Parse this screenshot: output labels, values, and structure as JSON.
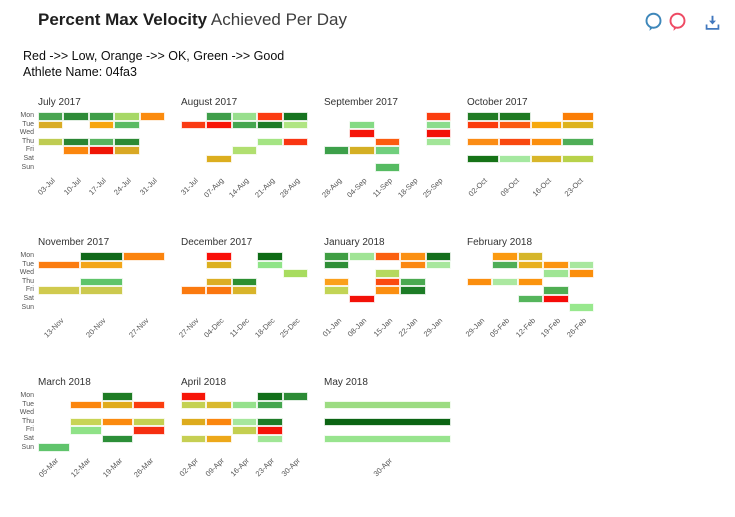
{
  "header": {
    "title_bold": "Percent Max Velocity",
    "title_rest": " Achieved Per Day",
    "toolbar": {
      "comment_blue_color": "#3e87ba",
      "comment_red_color": "#ee4a63",
      "download_color": "#4178be"
    }
  },
  "subtitle": {
    "legend_line": "Red ->> Low, Orange ->> OK, Green ->> Good",
    "athlete_line": "Athlete Name: 04fa3"
  },
  "chart_data": {
    "type": "heatmap",
    "title": "Percent Max Velocity Achieved Per Day",
    "subtitle": "Red ->> Low, Orange ->> OK, Green ->> Good",
    "athlete_name": "04fa3",
    "color_meaning": {
      "red": "Low",
      "orange": "OK",
      "green": "Good"
    },
    "legend_position": "none",
    "grid": false,
    "day_rows": [
      "Mon",
      "Tue",
      "Wed",
      "Thu",
      "Fri",
      "Sat",
      "Sun"
    ],
    "months_per_row": 4,
    "months": [
      {
        "title": "July 2017",
        "show_day_labels": true,
        "week_labels": [
          "03-Jul",
          "10-Jul",
          "17-Jul",
          "24-Jul",
          "31-Jul"
        ],
        "cells": [
          [
            "#4aa551",
            "#2e8b38",
            "#3f9e48",
            "#a7d866",
            "#fb8b0e"
          ],
          [
            "#d9ac25",
            null,
            "#f7a60e",
            "#5bbb63",
            null
          ],
          [
            null,
            null,
            null,
            null,
            null
          ],
          [
            "#bfcc52",
            "#2a8533",
            "#58b35e",
            "#2c8a34",
            null
          ],
          [
            null,
            "#fb860e",
            "#f01505",
            "#d9a824",
            null
          ],
          [
            null,
            null,
            null,
            null,
            null
          ],
          [
            null,
            null,
            null,
            null,
            null
          ]
        ]
      },
      {
        "title": "August 2017",
        "show_day_labels": false,
        "week_labels": [
          "31-Jul",
          "07-Aug",
          "14-Aug",
          "21-Aug",
          "28-Aug"
        ],
        "cells": [
          [
            null,
            "#3f9e4a",
            "#98df8d",
            "#fb3c12",
            "#177420"
          ],
          [
            "#fa3b14",
            "#f81508",
            "#45a64f",
            "#1e7c27",
            "#b0e583"
          ],
          [
            null,
            null,
            null,
            null,
            null
          ],
          [
            null,
            null,
            null,
            "#a4e483",
            "#f93512"
          ],
          [
            null,
            null,
            "#b1df70",
            null,
            null
          ],
          [
            null,
            "#dcae1f",
            null,
            null,
            null
          ],
          [
            null,
            null,
            null,
            null,
            null
          ]
        ]
      },
      {
        "title": "September 2017",
        "show_day_labels": false,
        "week_labels": [
          "28-Aug",
          "04-Sep",
          "11-Sep",
          "18-Sep",
          "25-Sep"
        ],
        "cells": [
          [
            null,
            null,
            null,
            null,
            "#fb3d0f"
          ],
          [
            null,
            "#84da84",
            null,
            null,
            "#8cdc8c"
          ],
          [
            null,
            "#f51408",
            null,
            null,
            "#f21008"
          ],
          [
            null,
            null,
            "#fb5c0f",
            null,
            "#a2e598"
          ],
          [
            "#3da04a",
            "#d4af24",
            "#70cf7d",
            null,
            null
          ],
          [
            null,
            null,
            null,
            null,
            null
          ],
          [
            null,
            null,
            "#56bb62",
            null,
            null
          ]
        ]
      },
      {
        "title": "October 2017",
        "show_day_labels": false,
        "week_labels": [
          "02-Oct",
          "09-Oct",
          "16-Oct",
          "23-Oct"
        ],
        "cells": [
          [
            "#217b24",
            "#1e7a22",
            null,
            "#fb7e06"
          ],
          [
            "#fb3b0d",
            "#fb5a11",
            "#f7a90d",
            "#ddb31d"
          ],
          [
            null,
            null,
            null,
            null
          ],
          [
            "#fb8c15",
            "#f9480f",
            "#fb8e0d",
            "#4fae57"
          ],
          [
            null,
            null,
            null,
            null
          ],
          [
            "#167317",
            "#a5e8a0",
            "#d8b62a",
            "#b8d24a"
          ],
          [
            null,
            null,
            null,
            null
          ]
        ]
      },
      {
        "title": "November 2017",
        "show_day_labels": true,
        "week_labels": [
          "13-Nov",
          "20-Nov",
          "27-Nov"
        ],
        "cells": [
          [
            null,
            "#11691a",
            "#fb840e"
          ],
          [
            "#fb7c10",
            "#f3a619",
            null
          ],
          [
            null,
            null,
            null
          ],
          [
            null,
            "#5fc46a",
            null
          ],
          [
            "#d0ca4e",
            "#ccc94e",
            null
          ],
          [
            null,
            null,
            null
          ],
          [
            null,
            null,
            null
          ]
        ]
      },
      {
        "title": "December 2017",
        "show_day_labels": false,
        "week_labels": [
          "27-Nov",
          "04-Dec",
          "11-Dec",
          "18-Dec",
          "25-Dec"
        ],
        "cells": [
          [
            null,
            "#f90f08",
            null,
            "#0e6b15",
            null
          ],
          [
            null,
            "#dcb01f",
            null,
            "#90e488",
            null
          ],
          [
            null,
            null,
            null,
            null,
            "#a8dc5f"
          ],
          [
            null,
            "#dcae24",
            "#2c8f31",
            null,
            null
          ],
          [
            "#fb7a0f",
            "#fb760f",
            "#d8b42a",
            null,
            null
          ],
          [
            null,
            null,
            null,
            null,
            null
          ],
          [
            null,
            null,
            null,
            null,
            null
          ]
        ]
      },
      {
        "title": "January 2018",
        "show_day_labels": false,
        "week_labels": [
          "01-Jan",
          "08-Jan",
          "15-Jan",
          "22-Jan",
          "29-Jan"
        ],
        "cells": [
          [
            "#3f9e43",
            "#a0e495",
            "#fb6010",
            "#fb9013",
            "#156f1d"
          ],
          [
            "#2f8f37",
            null,
            null,
            "#fb8711",
            "#a8e79e"
          ],
          [
            null,
            null,
            "#b5d95e",
            null,
            null
          ],
          [
            "#fba01b",
            null,
            "#fb4a10",
            "#4aa950",
            null
          ],
          [
            "#c2d455",
            null,
            "#fb8e10",
            "#1d7c26",
            null
          ],
          [
            null,
            "#f31108",
            null,
            null,
            null
          ],
          [
            null,
            null,
            null,
            null,
            null
          ]
        ]
      },
      {
        "title": "February 2018",
        "show_day_labels": false,
        "week_labels": [
          "29-Jan",
          "05-Feb",
          "12-Feb",
          "19-Feb",
          "26-Feb"
        ],
        "cells": [
          [
            null,
            "#fb9a10",
            "#d6b62a",
            null,
            null
          ],
          [
            null,
            "#4fae57",
            "#e8b01e",
            "#fb9410",
            "#a8e79e"
          ],
          [
            null,
            null,
            null,
            "#9fe594",
            "#fb8e0b"
          ],
          [
            "#fb8e0e",
            "#abe8a0",
            "#fb940e",
            null,
            null
          ],
          [
            null,
            null,
            null,
            "#4fae52",
            null
          ],
          [
            null,
            null,
            "#55b55c",
            "#f50b08",
            null
          ],
          [
            null,
            null,
            null,
            null,
            "#98e88e"
          ]
        ]
      },
      {
        "title": "March 2018",
        "show_day_labels": true,
        "week_labels": [
          "05-Mar",
          "12-Mar",
          "19-Mar",
          "26-Mar"
        ],
        "cells": [
          [
            null,
            null,
            "#1e7c24",
            null
          ],
          [
            null,
            "#fb860e",
            "#e0ab1c",
            "#fb3d0f"
          ],
          [
            null,
            null,
            null,
            null
          ],
          [
            null,
            "#c8d455",
            "#fb8a0e",
            "#c4d152"
          ],
          [
            null,
            "#8fe287",
            null,
            "#f62f10"
          ],
          [
            null,
            null,
            "#2c8f38",
            null
          ],
          [
            "#60c46c",
            null,
            null,
            null
          ]
        ]
      },
      {
        "title": "April 2018",
        "show_day_labels": false,
        "week_labels": [
          "02-Apr",
          "09-Apr",
          "16-Apr",
          "23-Apr",
          "30-Apr"
        ],
        "cells": [
          [
            "#f71508",
            null,
            null,
            "#12701a",
            "#2c8b35"
          ],
          [
            "#c4d152",
            "#d9b92e",
            "#95e18c",
            "#45a64f",
            null
          ],
          [
            null,
            null,
            null,
            null,
            null
          ],
          [
            "#ddab1d",
            "#fb860e",
            "#a6e79c",
            "#1e7c27",
            null
          ],
          [
            null,
            null,
            "#c4cf50",
            "#f51408",
            null
          ],
          [
            "#c6cf53",
            "#eda81a",
            null,
            "#a0e696",
            null
          ],
          [
            null,
            null,
            null,
            null,
            null
          ]
        ]
      },
      {
        "title": "May 2018",
        "show_day_labels": false,
        "week_labels": [
          "30-Apr"
        ],
        "cells": [
          [
            null
          ],
          [
            "#9cdc82"
          ],
          [
            null
          ],
          [
            "#0b6413"
          ],
          [
            null
          ],
          [
            "#98e48e"
          ],
          [
            null
          ]
        ]
      }
    ]
  }
}
